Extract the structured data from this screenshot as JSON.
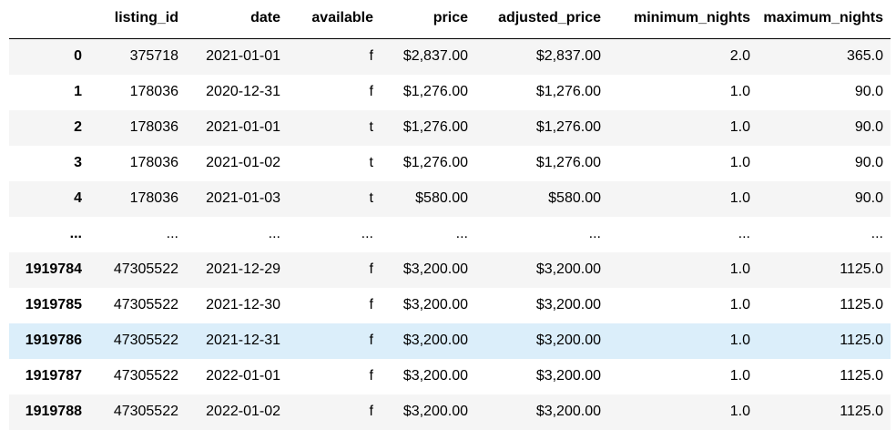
{
  "table": {
    "columns": [
      "listing_id",
      "date",
      "available",
      "price",
      "adjusted_price",
      "minimum_nights",
      "maximum_nights"
    ],
    "rows": [
      {
        "index": "0",
        "cells": [
          "375718",
          "2021-01-01",
          "f",
          "$2,837.00",
          "$2,837.00",
          "2.0",
          "365.0"
        ]
      },
      {
        "index": "1",
        "cells": [
          "178036",
          "2020-12-31",
          "f",
          "$1,276.00",
          "$1,276.00",
          "1.0",
          "90.0"
        ]
      },
      {
        "index": "2",
        "cells": [
          "178036",
          "2021-01-01",
          "t",
          "$1,276.00",
          "$1,276.00",
          "1.0",
          "90.0"
        ]
      },
      {
        "index": "3",
        "cells": [
          "178036",
          "2021-01-02",
          "t",
          "$1,276.00",
          "$1,276.00",
          "1.0",
          "90.0"
        ]
      },
      {
        "index": "4",
        "cells": [
          "178036",
          "2021-01-03",
          "t",
          "$580.00",
          "$580.00",
          "1.0",
          "90.0"
        ]
      },
      {
        "index": "...",
        "cells": [
          "...",
          "...",
          "...",
          "...",
          "...",
          "...",
          "..."
        ]
      },
      {
        "index": "1919784",
        "cells": [
          "47305522",
          "2021-12-29",
          "f",
          "$3,200.00",
          "$3,200.00",
          "1.0",
          "1125.0"
        ]
      },
      {
        "index": "1919785",
        "cells": [
          "47305522",
          "2021-12-30",
          "f",
          "$3,200.00",
          "$3,200.00",
          "1.0",
          "1125.0"
        ]
      },
      {
        "index": "1919786",
        "cells": [
          "47305522",
          "2021-12-31",
          "f",
          "$3,200.00",
          "$3,200.00",
          "1.0",
          "1125.0"
        ]
      },
      {
        "index": "1919787",
        "cells": [
          "47305522",
          "2022-01-01",
          "f",
          "$3,200.00",
          "$3,200.00",
          "1.0",
          "1125.0"
        ]
      },
      {
        "index": "1919788",
        "cells": [
          "47305522",
          "2022-01-02",
          "f",
          "$3,200.00",
          "$3,200.00",
          "1.0",
          "1125.0"
        ]
      }
    ],
    "hovered_row": 8
  },
  "colors": {
    "stripe": "#f5f5f5",
    "hover": "#dbeefa",
    "header_rule": "#000000"
  }
}
